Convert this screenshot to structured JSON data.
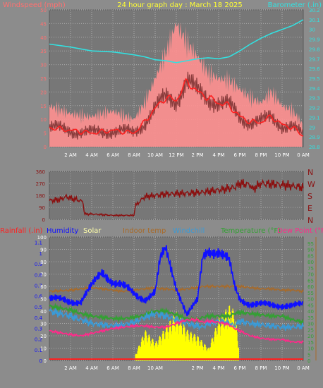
{
  "header": {
    "title": "24 hour graph day : March 18 2025",
    "left_label": "Windspeed (mph)",
    "right_label": "Barometer (.in)"
  },
  "colors": {
    "background": "#8c8c8c",
    "plot_bg": "#777777",
    "grid": "#aaaaaa",
    "title": "#ffff33",
    "windspeed": "#ff7070",
    "windspeed_fill": "#ff9090",
    "windspeed_avg": "#ff2020",
    "wind_dark": "#8a3c3c",
    "barometer": "#33e0e0",
    "direction": "#8b1010",
    "rainfall": "#ff2020",
    "humidity": "#1010ff",
    "solar": "#ffff00",
    "indoor": "#a86a28",
    "windchill": "#3a9ad6",
    "temperature": "#33a033",
    "dewpoint": "#ff2a8a"
  },
  "chart_data": [
    {
      "type": "line",
      "name": "wind-barometer",
      "x_ticks": [
        "2 AM",
        "4 AM",
        "6 AM",
        "8 AM",
        "10 AM",
        "12 PM",
        "2 PM",
        "4 PM",
        "6 PM",
        "8 PM",
        "10 PM",
        "0 AM"
      ],
      "y_left_ticks": [
        "0",
        "5",
        "10",
        "15",
        "20",
        "25",
        "30",
        "35",
        "40",
        "45",
        "50"
      ],
      "y_left_range": [
        0,
        50
      ],
      "y_right_ticks": [
        "28.8",
        "28.9",
        "29",
        "29.1",
        "29.2",
        "29.3",
        "29.4",
        "29.5",
        "29.6",
        "29.7",
        "29.8",
        "29.9",
        "30",
        "30.1",
        "30.2"
      ],
      "y_right_range": [
        28.8,
        30.2
      ],
      "hours": [
        0,
        2,
        4,
        6,
        8,
        9,
        10,
        11,
        12,
        13,
        14,
        15,
        16,
        17,
        18,
        19,
        20,
        21,
        22,
        23,
        24
      ],
      "windspeed_avg": [
        7,
        6,
        5,
        6,
        5,
        9,
        14,
        18,
        17,
        24,
        20,
        18,
        16,
        15,
        11,
        9,
        9,
        11,
        8,
        7,
        4
      ],
      "windspeed_gust": [
        15,
        12,
        11,
        13,
        10,
        16,
        25,
        34,
        45,
        38,
        33,
        27,
        25,
        24,
        21,
        18,
        16,
        20,
        15,
        13,
        8
      ],
      "barometer": [
        29.85,
        29.82,
        29.78,
        29.77,
        29.74,
        29.72,
        29.69,
        29.68,
        29.66,
        29.68,
        29.7,
        29.71,
        29.7,
        29.72,
        29.78,
        29.85,
        29.91,
        29.96,
        30.0,
        30.04,
        30.1
      ]
    },
    {
      "type": "line",
      "name": "wind-direction",
      "y_ticks": [
        "360",
        "270",
        "180",
        "90",
        "0"
      ],
      "y_range": [
        0,
        360
      ],
      "compass": [
        "N",
        "W",
        "S",
        "E",
        "N"
      ],
      "hours": [
        0,
        1,
        1.6,
        2.4,
        2.6,
        3.2,
        3.3,
        4,
        6,
        8,
        8.1,
        9,
        11,
        14,
        16,
        17.5,
        18,
        19,
        19.2,
        20,
        22,
        24
      ],
      "direction": [
        140,
        150,
        170,
        150,
        150,
        130,
        40,
        40,
        30,
        30,
        100,
        170,
        190,
        200,
        220,
        240,
        270,
        260,
        225,
        270,
        260,
        240
      ]
    },
    {
      "type": "line",
      "name": "environment",
      "labels": [
        "Rainfall (.in)",
        "Humidity",
        "Solar",
        "Indoor temp",
        "Windchill",
        "Temperature (°F)",
        "Dew Point (°F)"
      ],
      "x_ticks": [
        "2 AM",
        "4 AM",
        "6 AM",
        "8 AM",
        "10 AM",
        "2 PM",
        "4 PM",
        "6 PM",
        "8 PM",
        "10 PM",
        "0 AM"
      ],
      "y_left_ticks": [
        "0",
        "0.1",
        "0.2",
        "0.3",
        "0.4",
        "0.5",
        "0.6",
        "0.7",
        "0.8",
        "0.9",
        "1",
        "1.1"
      ],
      "y_pct_ticks": [
        "0",
        "10",
        "20",
        "30",
        "40",
        "50",
        "60",
        "70",
        "80",
        "90",
        "100"
      ],
      "y_temp_ticks": [
        "0",
        "5",
        "10",
        "15",
        "20",
        "25",
        "30",
        "35",
        "40",
        "45",
        "50",
        "55",
        "60",
        "65",
        "70",
        "75",
        "80",
        "85",
        "90",
        "95"
      ],
      "hours": [
        0,
        2,
        3,
        4,
        5,
        6,
        7,
        8,
        9,
        10,
        10.5,
        11,
        12,
        13,
        14,
        14.5,
        15,
        16,
        17,
        17.5,
        18,
        19,
        20,
        21,
        22,
        23,
        24
      ],
      "humidity": [
        50,
        48,
        48,
        60,
        72,
        64,
        60,
        54,
        50,
        55,
        82,
        90,
        60,
        37,
        48,
        84,
        90,
        88,
        80,
        60,
        50,
        46,
        45,
        45,
        45,
        44,
        45
      ],
      "indoor_temp": [
        56,
        57,
        58,
        59,
        58,
        57,
        56,
        57,
        58,
        59,
        58,
        58,
        57,
        58,
        59,
        60,
        60,
        60,
        60,
        60,
        60,
        59,
        58,
        58,
        57,
        57,
        56
      ],
      "temperature": [
        44,
        41,
        38,
        36,
        35,
        34,
        34,
        35,
        37,
        40,
        40,
        40,
        37,
        34,
        33,
        35,
        36,
        36,
        36,
        38,
        39,
        38,
        37,
        36,
        36,
        33,
        31
      ],
      "windchill": [
        40,
        36,
        33,
        30,
        29,
        28,
        29,
        31,
        35,
        38,
        37,
        36,
        33,
        30,
        28,
        27,
        30,
        32,
        30,
        28,
        32,
        30,
        29,
        28,
        27,
        27,
        28
      ],
      "dewpoint": [
        24,
        21,
        20,
        22,
        24,
        26,
        27,
        28,
        28,
        27,
        27,
        27,
        30,
        33,
        33,
        31,
        32,
        31,
        29,
        26,
        24,
        20,
        18,
        17,
        17,
        15,
        15
      ],
      "solar_hours": [
        8.1,
        9,
        10,
        11,
        12,
        13,
        14,
        15,
        16,
        17,
        17.5,
        17.9
      ],
      "solar": [
        5,
        25,
        15,
        28,
        40,
        25,
        20,
        10,
        35,
        45,
        40,
        10
      ]
    }
  ]
}
